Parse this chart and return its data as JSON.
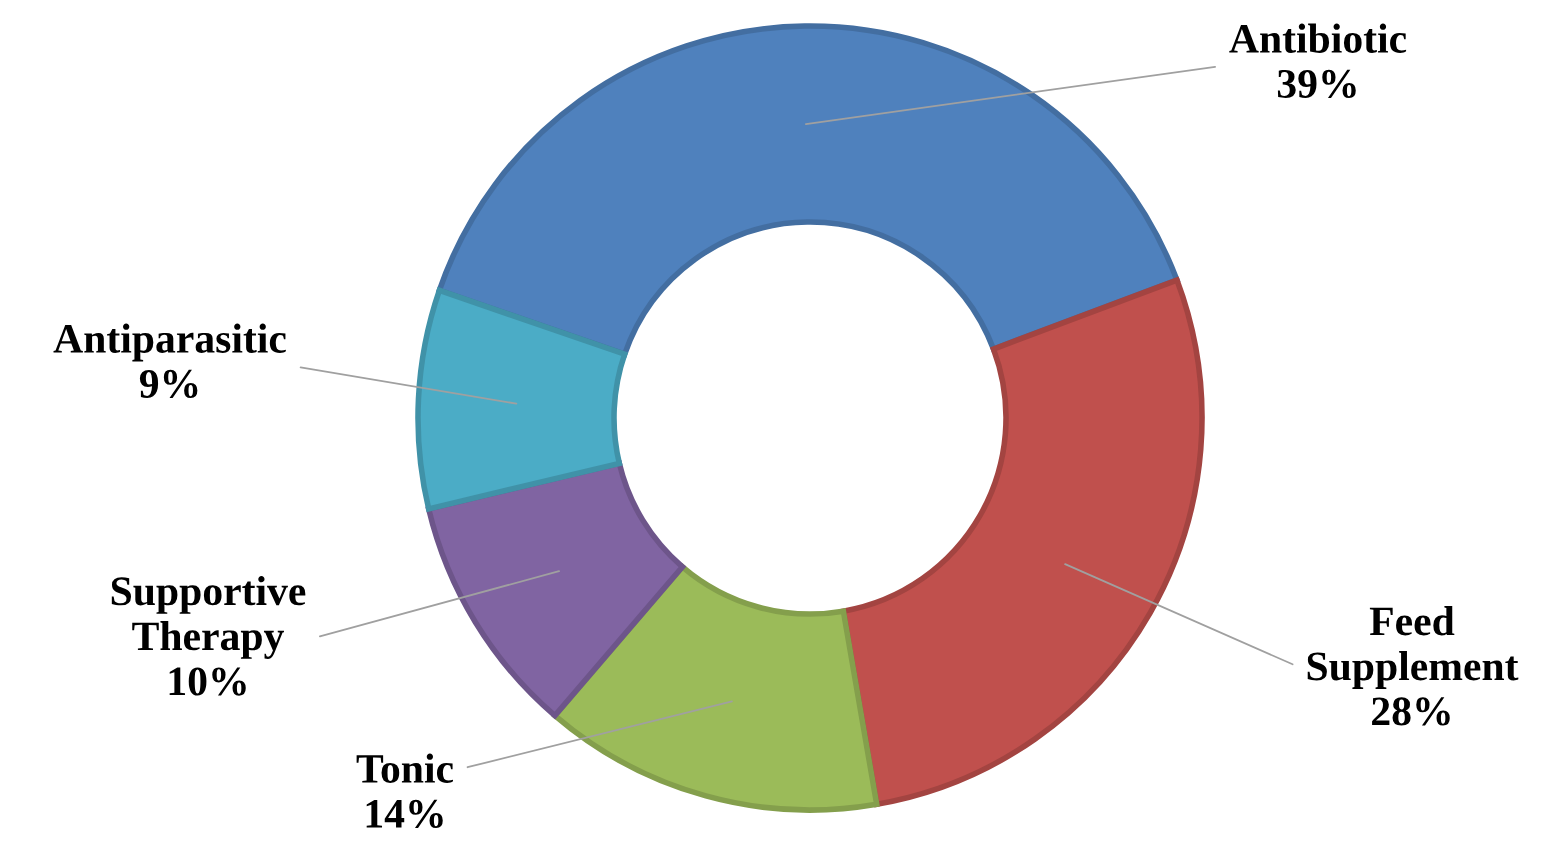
{
  "chart_data": {
    "type": "donut",
    "categories": [
      "Antibiotic",
      "Feed Supplement",
      "Tonic",
      "Supportive Therapy",
      "Antiparasitic"
    ],
    "values": [
      39,
      28,
      14,
      10,
      9
    ],
    "colors": [
      "#4f81bd",
      "#c0504d",
      "#9bbb59",
      "#8064a2",
      "#4bacc6"
    ],
    "value_labels": [
      "39%",
      "28%",
      "14%",
      "10%",
      "9%"
    ]
  }
}
